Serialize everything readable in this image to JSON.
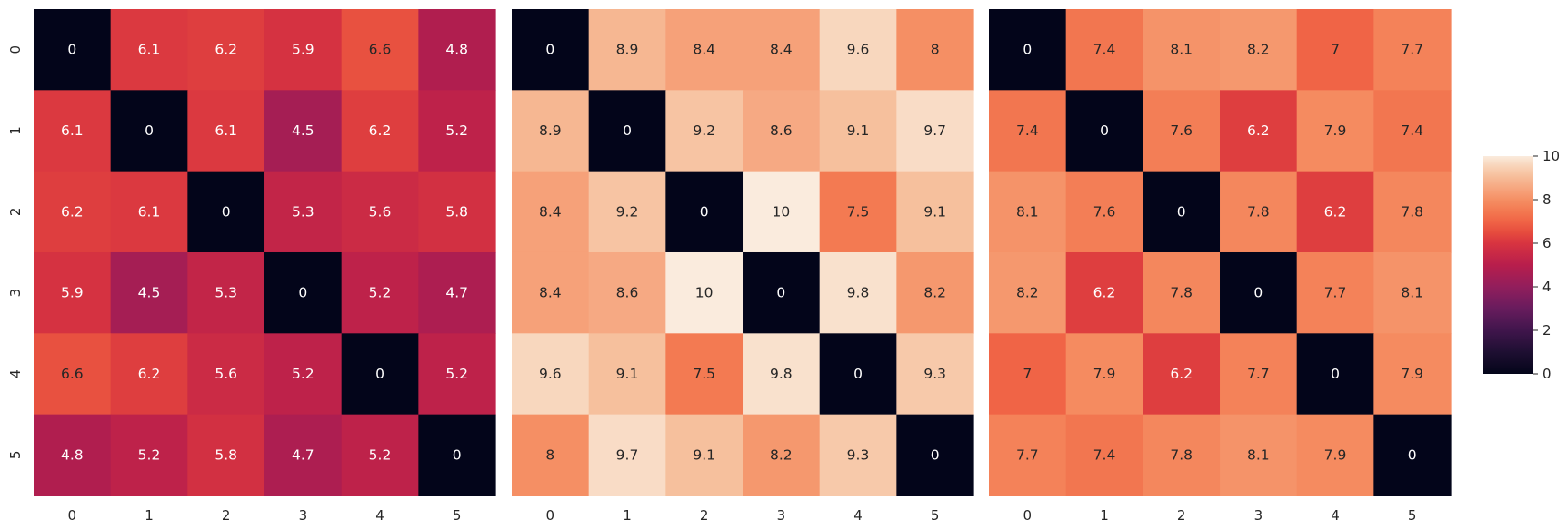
{
  "chart_data": [
    {
      "type": "heatmap",
      "x_categories": [
        "0",
        "1",
        "2",
        "3",
        "4",
        "5"
      ],
      "y_categories": [
        "0",
        "1",
        "2",
        "3",
        "4",
        "5"
      ],
      "values": [
        [
          0,
          6.1,
          6.2,
          5.9,
          6.6,
          4.8
        ],
        [
          6.1,
          0,
          6.1,
          4.5,
          6.2,
          5.2
        ],
        [
          6.2,
          6.1,
          0,
          5.3,
          5.6,
          5.8
        ],
        [
          5.9,
          4.5,
          5.3,
          0,
          5.2,
          4.7
        ],
        [
          6.6,
          6.2,
          5.6,
          5.2,
          0,
          5.2
        ],
        [
          4.8,
          5.2,
          5.8,
          4.7,
          5.2,
          0
        ]
      ],
      "annotated": true,
      "show_y_ticks": true
    },
    {
      "type": "heatmap",
      "x_categories": [
        "0",
        "1",
        "2",
        "3",
        "4",
        "5"
      ],
      "y_categories": [
        "0",
        "1",
        "2",
        "3",
        "4",
        "5"
      ],
      "values": [
        [
          0,
          8.9,
          8.4,
          8.4,
          9.6,
          8
        ],
        [
          8.9,
          0,
          9.2,
          8.6,
          9.1,
          9.7
        ],
        [
          8.4,
          9.2,
          0,
          10,
          7.5,
          9.1
        ],
        [
          8.4,
          8.6,
          10,
          0,
          9.8,
          8.2
        ],
        [
          9.6,
          9.1,
          7.5,
          9.8,
          0,
          9.3
        ],
        [
          8,
          9.7,
          9.1,
          8.2,
          9.3,
          0
        ]
      ],
      "annotated": true,
      "show_y_ticks": false
    },
    {
      "type": "heatmap",
      "x_categories": [
        "0",
        "1",
        "2",
        "3",
        "4",
        "5"
      ],
      "y_categories": [
        "0",
        "1",
        "2",
        "3",
        "4",
        "5"
      ],
      "values": [
        [
          0,
          7.4,
          8.1,
          8.2,
          7,
          7.7
        ],
        [
          7.4,
          0,
          7.6,
          6.2,
          7.9,
          7.4
        ],
        [
          8.1,
          7.6,
          0,
          7.8,
          6.2,
          7.8
        ],
        [
          8.2,
          6.2,
          7.8,
          0,
          7.7,
          8.1
        ],
        [
          7,
          7.9,
          6.2,
          7.7,
          0,
          7.9
        ],
        [
          7.7,
          7.4,
          7.8,
          8.1,
          7.9,
          0
        ]
      ],
      "annotated": true,
      "show_y_ticks": false
    }
  ],
  "colorbar": {
    "colormap": "rocket",
    "vmin": 0,
    "vmax": 10,
    "ticks": [
      0,
      2,
      4,
      6,
      8,
      10
    ]
  }
}
